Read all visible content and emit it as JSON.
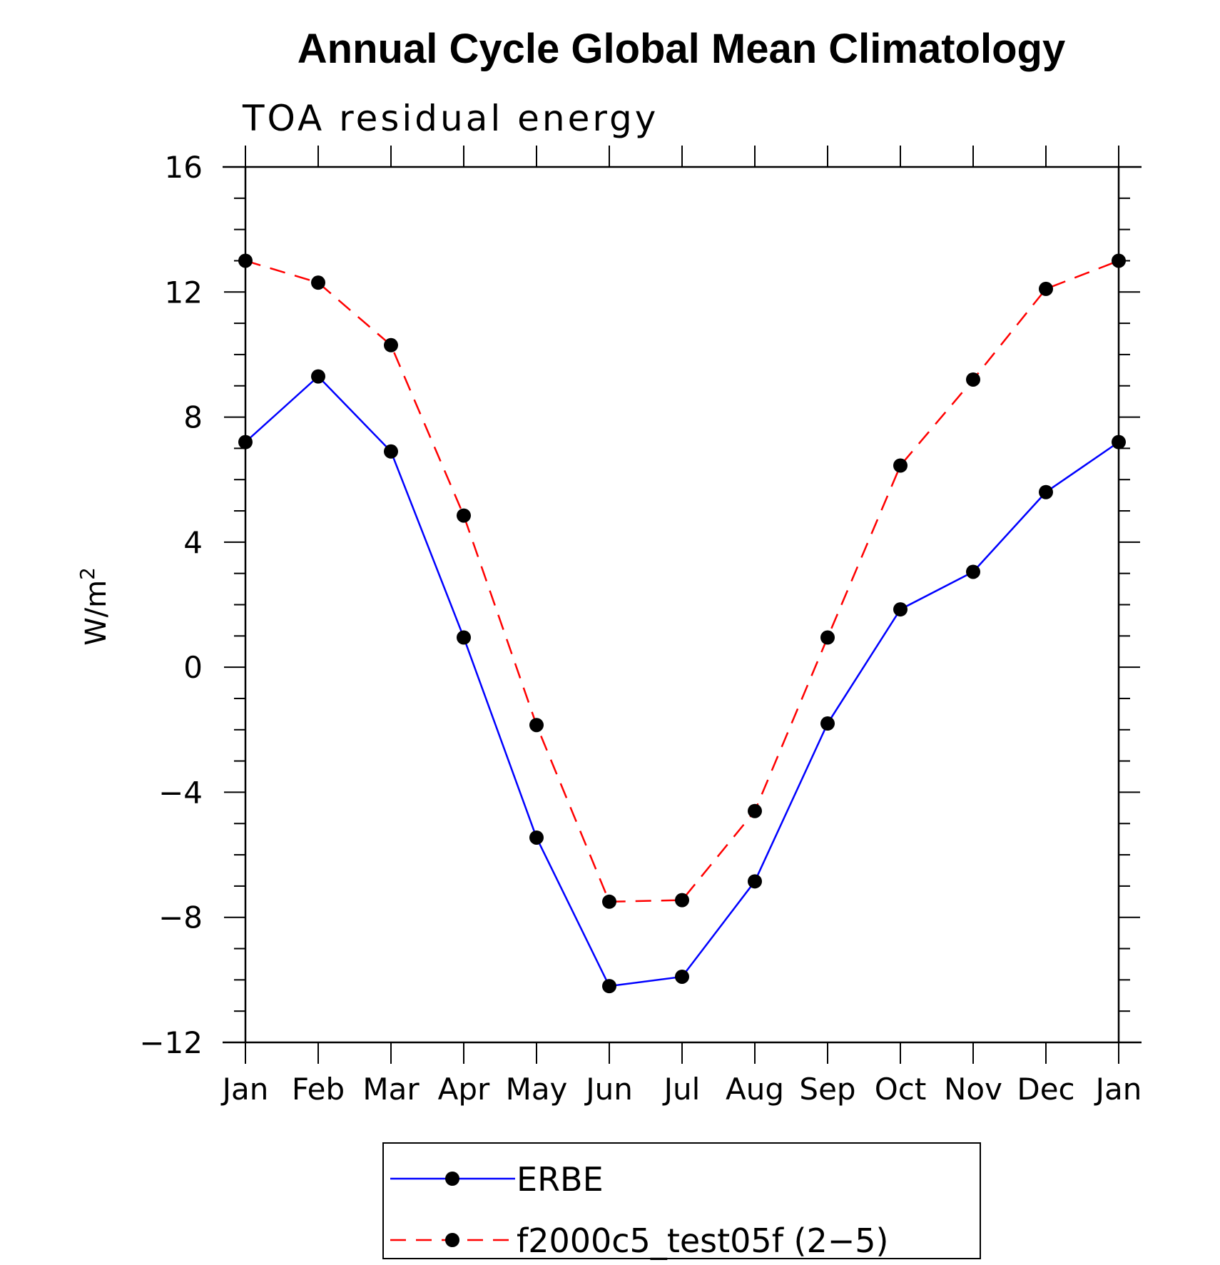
{
  "chart_data": {
    "type": "line",
    "title": "Annual Cycle Global Mean Climatology",
    "subtitle": "TOA residual energy",
    "ylabel": "W/m",
    "ylabel_sup": "2",
    "xlabel": "",
    "categories": [
      "Jan",
      "Feb",
      "Mar",
      "Apr",
      "May",
      "Jun",
      "Jul",
      "Aug",
      "Sep",
      "Oct",
      "Nov",
      "Dec",
      "Jan"
    ],
    "ylim": [
      -12,
      16
    ],
    "yticks": [
      16,
      12,
      8,
      4,
      0,
      -4,
      -8,
      -12
    ],
    "ytick_labels": [
      "16",
      "12",
      "8",
      "4",
      "0",
      "−4",
      "−8",
      "−12"
    ],
    "grid": false,
    "legend_position": "bottom",
    "series": [
      {
        "name": "ERBE",
        "color": "#0000ff",
        "dash": "solid",
        "values": [
          7.2,
          9.3,
          6.9,
          0.95,
          -5.45,
          -10.2,
          -9.9,
          -6.85,
          -1.8,
          1.85,
          3.05,
          5.6,
          7.2
        ]
      },
      {
        "name": "f2000c5_test05f (2−5)",
        "color": "#ff0000",
        "dash": "dashed",
        "values": [
          13.0,
          12.3,
          10.3,
          4.85,
          -1.85,
          -7.5,
          -7.45,
          -4.6,
          0.95,
          6.45,
          9.2,
          12.1,
          13.0
        ]
      }
    ]
  }
}
